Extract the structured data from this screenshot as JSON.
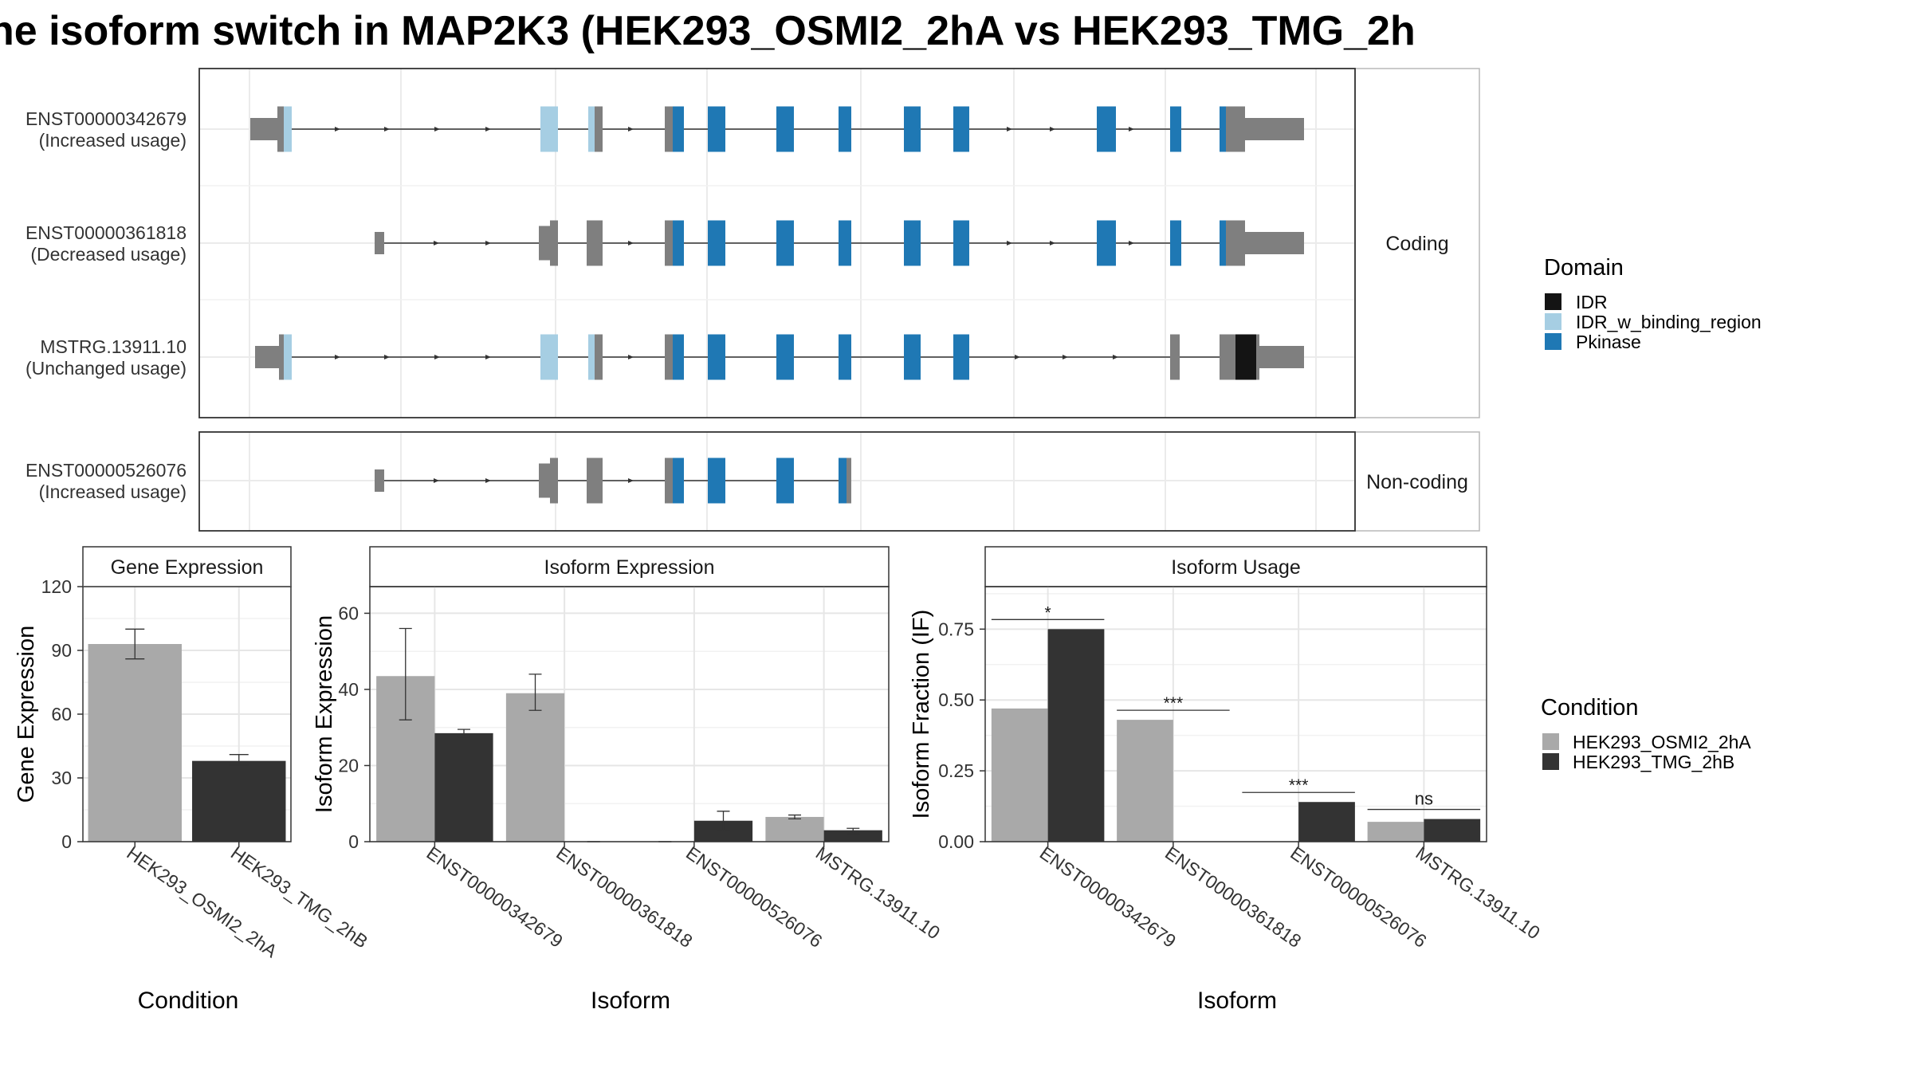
{
  "title": "ne isoform switch in MAP2K3 (HEK293_OSMI2_2hA vs HEK293_TMG_2h",
  "colors": {
    "IDR": "#141414",
    "IDR_w_binding_region": "#A6CEE3",
    "Pkinase": "#1F78B4",
    "exon": "#7F7F7F",
    "cond_a": "#A9A9A9",
    "cond_b": "#333333"
  },
  "structure": {
    "groups": [
      {
        "label": "Coding",
        "isoforms": [
          "ENST00000342679",
          "ENST00000361818",
          "MSTRG.13911.10"
        ]
      },
      {
        "label": "Non-coding",
        "isoforms": [
          "ENST00000526076"
        ]
      }
    ],
    "isoforms": [
      {
        "id": "ENST00000342679",
        "usage": "(Increased usage)"
      },
      {
        "id": "ENST00000361818",
        "usage": "(Decreased usage)"
      },
      {
        "id": "MSTRG.13911.10",
        "usage": "(Unchanged usage)"
      },
      {
        "id": "ENST00000526076",
        "usage": "(Increased usage)"
      }
    ]
  },
  "legend_domain": {
    "title": "Domain",
    "items": [
      {
        "label": "IDR",
        "color": "#141414"
      },
      {
        "label": "IDR_w_binding_region",
        "color": "#A6CEE3"
      },
      {
        "label": "Pkinase",
        "color": "#1F78B4"
      }
    ]
  },
  "legend_condition": {
    "title": "Condition",
    "items": [
      {
        "label": "HEK293_OSMI2_2hA",
        "color": "#A9A9A9"
      },
      {
        "label": "HEK293_TMG_2hB",
        "color": "#333333"
      }
    ]
  },
  "chart_data": [
    {
      "type": "bar",
      "title": "Gene Expression",
      "xlabel": "Condition",
      "ylabel": "Gene Expression",
      "categories": [
        "HEK293_OSMI2_2hA",
        "HEK293_TMG_2hB"
      ],
      "values": [
        93,
        38
      ],
      "errors": [
        [
          86,
          100
        ],
        [
          36,
          41
        ]
      ],
      "ylim": [
        0,
        120
      ],
      "yticks": [
        "0",
        "30",
        "60",
        "90",
        "120"
      ]
    },
    {
      "type": "bar",
      "title": "Isoform Expression",
      "xlabel": "Isoform",
      "ylabel": "Isoform Expression",
      "categories": [
        "ENST00000342679",
        "ENST00000361818",
        "ENST00000526076",
        "MSTRG.13911.10"
      ],
      "series": [
        {
          "name": "HEK293_OSMI2_2hA",
          "values": [
            43.5,
            39,
            0,
            6.5
          ],
          "errors": [
            [
              32,
              56
            ],
            [
              34.5,
              44
            ],
            [
              0,
              0
            ],
            [
              6,
              7
            ]
          ]
        },
        {
          "name": "HEK293_TMG_2hB",
          "values": [
            28.5,
            0,
            5.5,
            3
          ],
          "errors": [
            [
              27.5,
              29.5
            ],
            [
              0,
              0
            ],
            [
              3,
              8
            ],
            [
              2,
              3.5
            ]
          ]
        }
      ],
      "ylim": [
        0,
        67
      ],
      "yticks": [
        "0",
        "20",
        "40",
        "60"
      ]
    },
    {
      "type": "bar",
      "title": "Isoform Usage",
      "xlabel": "Isoform",
      "ylabel": "Isoform Fraction (IF)",
      "categories": [
        "ENST00000342679",
        "ENST00000361818",
        "ENST00000526076",
        "MSTRG.13911.10"
      ],
      "series": [
        {
          "name": "HEK293_OSMI2_2hA",
          "values": [
            0.47,
            0.43,
            0,
            0.07
          ]
        },
        {
          "name": "HEK293_TMG_2hB",
          "values": [
            0.75,
            0,
            0.14,
            0.08
          ]
        }
      ],
      "significance": [
        "*",
        "***",
        "***",
        "ns"
      ],
      "ylim": [
        0,
        0.9
      ],
      "yticks": [
        "0.00",
        "0.25",
        "0.50",
        "0.75"
      ]
    }
  ]
}
